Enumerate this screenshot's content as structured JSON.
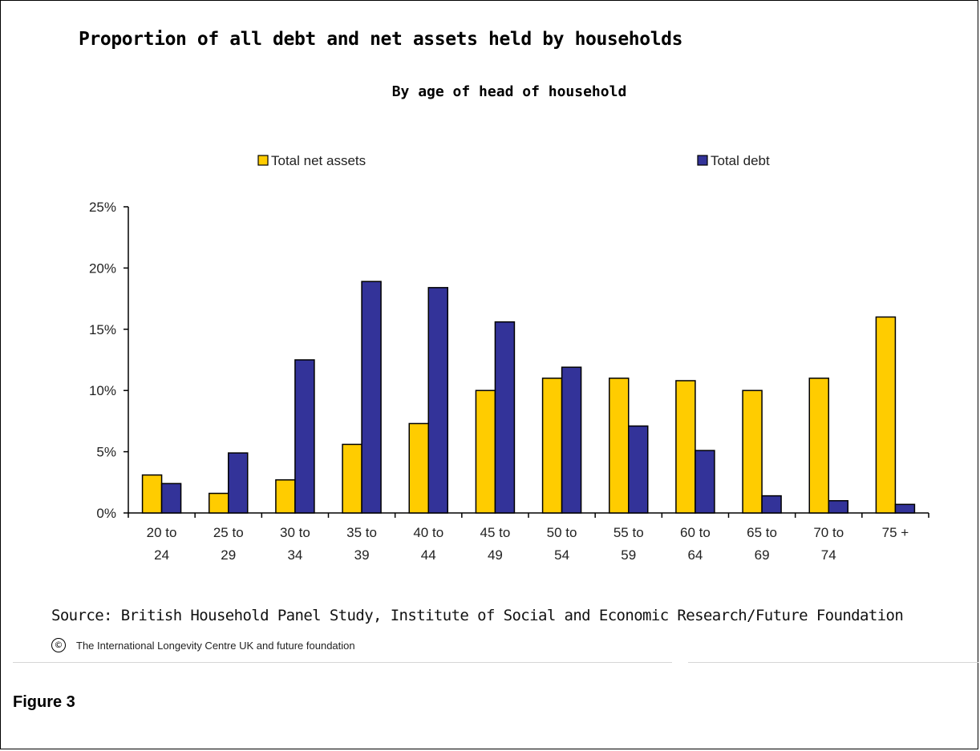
{
  "page": {
    "figure_label": "Figure 3",
    "source_text": "Source: British Household Panel Study, Institute of Social and Economic Research/Future Foundation",
    "copyright_symbol": "©",
    "copyright_text": "The International Longevity Centre UK and future foundation"
  },
  "chart_data": {
    "type": "bar",
    "title": "Proportion of all debt and net assets held by households",
    "subtitle": "By age of head of household",
    "xlabel": "",
    "ylabel": "",
    "categories": [
      [
        "20 to",
        "24"
      ],
      [
        "25 to",
        "29"
      ],
      [
        "30 to",
        "34"
      ],
      [
        "35 to",
        "39"
      ],
      [
        "40 to",
        "44"
      ],
      [
        "45 to",
        "49"
      ],
      [
        "50 to",
        "54"
      ],
      [
        "55 to",
        "59"
      ],
      [
        "60 to",
        "64"
      ],
      [
        "65 to",
        "69"
      ],
      [
        "70 to",
        "74"
      ],
      [
        "75 +"
      ]
    ],
    "series": [
      {
        "name": "Total net assets",
        "color": "#FFCC00",
        "values": [
          3.1,
          1.6,
          2.7,
          5.6,
          7.3,
          10.0,
          11.0,
          11.0,
          10.8,
          10.0,
          11.0,
          16.0
        ]
      },
      {
        "name": "Total debt",
        "color": "#333399",
        "values": [
          2.4,
          4.9,
          12.5,
          18.9,
          18.4,
          15.6,
          11.9,
          7.1,
          5.1,
          1.4,
          1.0,
          0.7
        ]
      }
    ],
    "ylim": [
      0,
      25
    ],
    "yticks": [
      0,
      5,
      10,
      15,
      20,
      25
    ],
    "ytick_labels": [
      "0%",
      "5%",
      "10%",
      "15%",
      "20%",
      "25%"
    ],
    "grid": false,
    "legend_position": "top"
  }
}
